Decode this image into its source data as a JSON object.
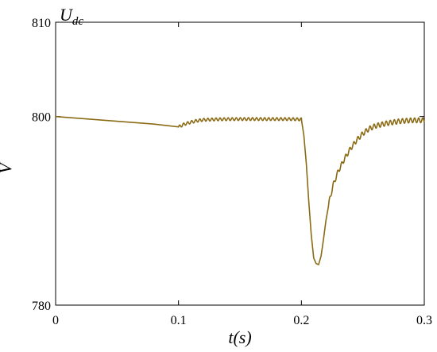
{
  "chart_data": {
    "type": "line",
    "title": {
      "main": "U",
      "subscript": "dc"
    },
    "xlabel": "t(s)",
    "ylabel": "V",
    "xlim": [
      0,
      0.3
    ],
    "ylim": [
      780,
      810
    ],
    "xticks": [
      0,
      0.1,
      0.2,
      0.3
    ],
    "xtick_labels": [
      "0",
      "0.1",
      "0.2",
      "0.3"
    ],
    "yticks": [
      780,
      800,
      810
    ],
    "ytick_labels": [
      "780",
      "800",
      "810"
    ],
    "grid": false,
    "line_color": "#8B6A14",
    "series": [
      {
        "x": [
          0,
          0.02,
          0.04,
          0.06,
          0.08,
          0.1,
          0.105,
          0.11,
          0.115,
          0.12,
          0.13,
          0.14,
          0.15,
          0.16,
          0.17,
          0.18,
          0.19,
          0.2,
          0.202,
          0.204,
          0.206,
          0.208,
          0.21,
          0.212,
          0.214,
          0.216,
          0.218,
          0.22,
          0.223,
          0.226,
          0.23,
          0.235,
          0.24,
          0.245,
          0.25,
          0.255,
          0.26,
          0.27,
          0.28,
          0.29,
          0.3
        ],
        "y": [
          800,
          799.8,
          799.6,
          799.4,
          799.2,
          798.9,
          799.2,
          799.4,
          799.55,
          799.65,
          799.7,
          799.72,
          799.73,
          799.73,
          799.73,
          799.73,
          799.73,
          799.7,
          798,
          795,
          791,
          787.5,
          785.0,
          784.4,
          784.3,
          785.2,
          787.0,
          789.0,
          791.2,
          792.8,
          794.2,
          795.5,
          796.6,
          797.5,
          798.2,
          798.7,
          799.0,
          799.3,
          799.5,
          799.6,
          799.6
        ]
      }
    ],
    "ripple_regions": [
      {
        "x_start": 0.1,
        "x_end": 0.2,
        "amplitude": 0.15,
        "period": 0.0033
      },
      {
        "x_start": 0.222,
        "x_end": 0.3,
        "amplitude": 0.25,
        "period": 0.0033
      }
    ]
  }
}
